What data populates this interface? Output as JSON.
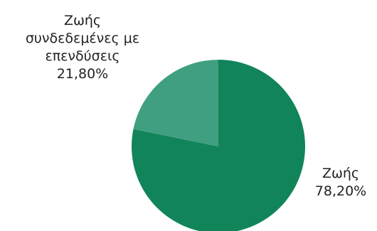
{
  "chart_data": {
    "type": "pie",
    "title": "",
    "start_angle_deg": 0,
    "direction": "clockwise",
    "slices": [
      {
        "name": "Ζωής",
        "label_lines": [
          "Ζωής"
        ],
        "value": 78.2,
        "value_label": "78,20%",
        "color": "#11845a"
      },
      {
        "name": "Ζωής συνδεδεμένες με επενδύσεις",
        "label_lines": [
          "Ζωής",
          "συνδεδεμένες με",
          "επενδύσεις"
        ],
        "value": 21.8,
        "value_label": "21,80%",
        "color": "#3f9f80"
      }
    ]
  }
}
